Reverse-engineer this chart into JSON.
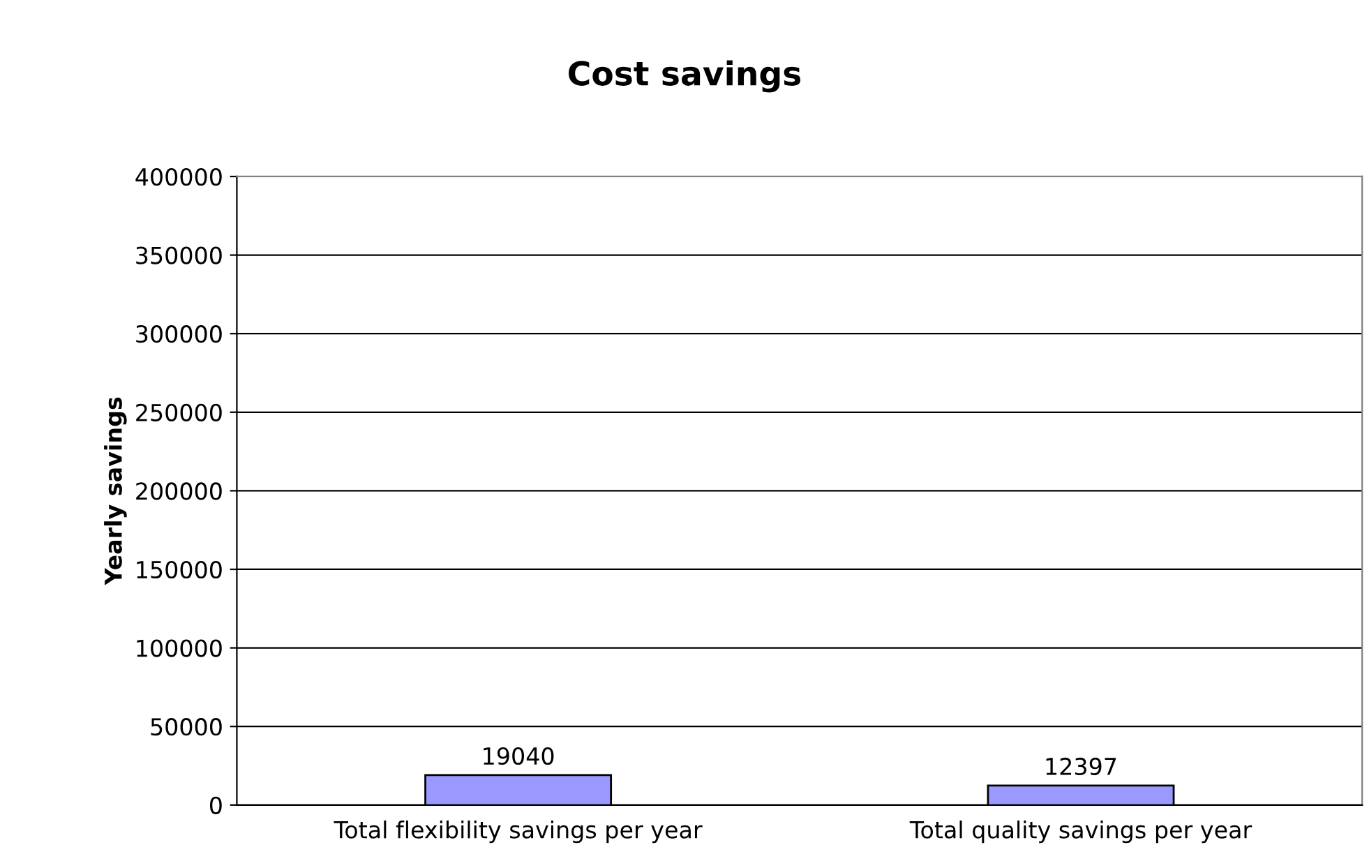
{
  "chart_data": {
    "type": "bar",
    "title": "Cost savings",
    "ylabel": "Yearly savings",
    "categories": [
      "Total flexibility savings per year",
      "Total quality savings per year"
    ],
    "values": [
      19040,
      12397
    ],
    "color": "#9999ff",
    "ylim": [
      0,
      400000
    ],
    "yticks": [
      0,
      50000,
      100000,
      150000,
      200000,
      250000,
      300000,
      350000,
      400000
    ],
    "grid": "y",
    "data_labels": true,
    "legend": false
  }
}
